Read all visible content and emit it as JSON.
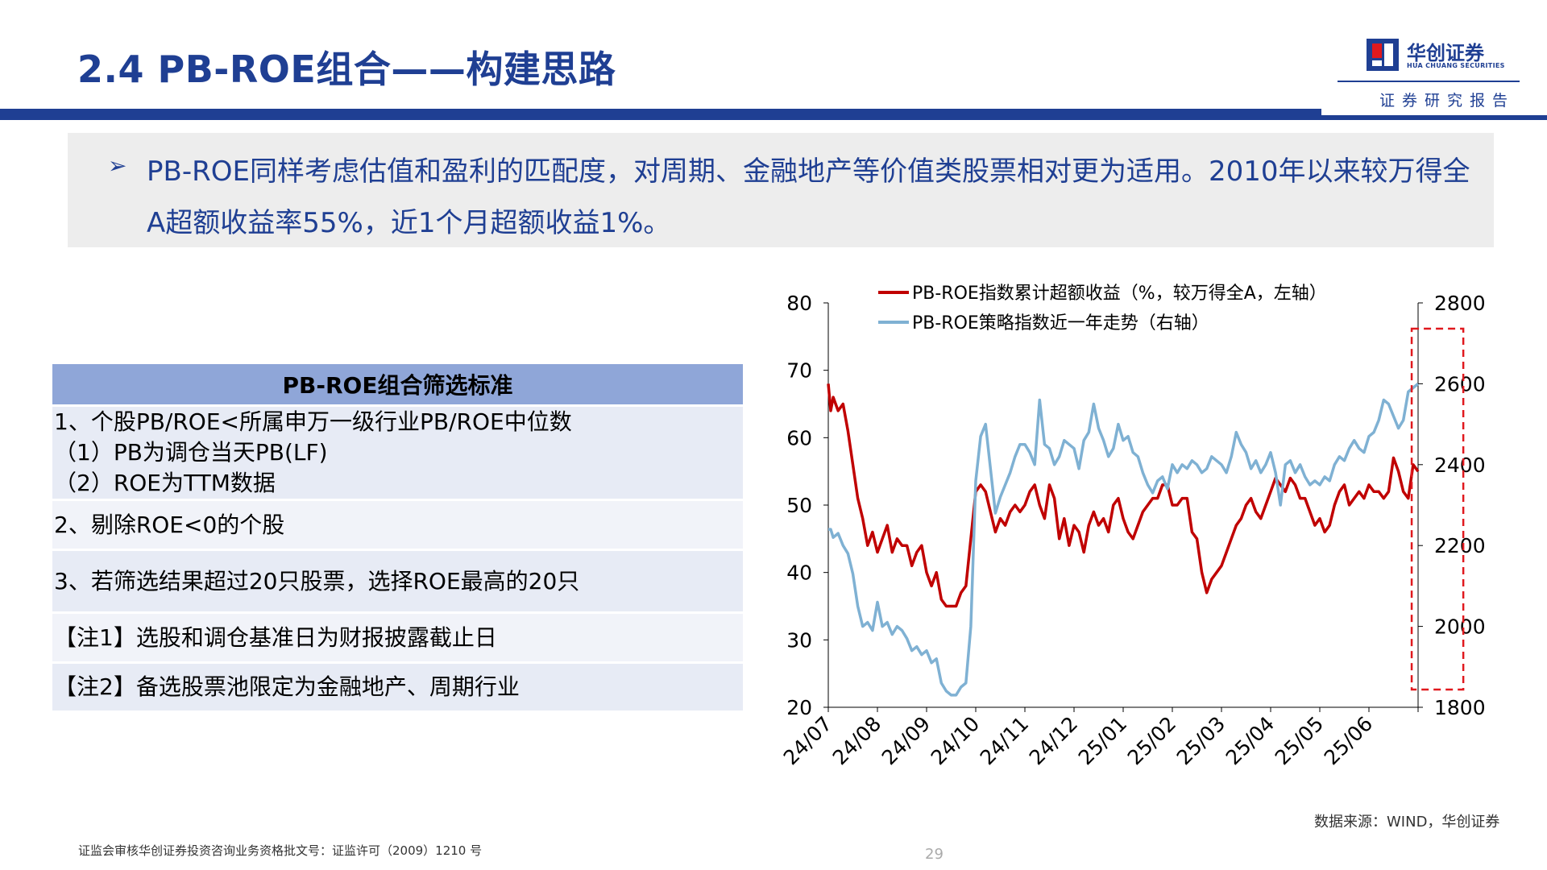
{
  "header": {
    "title": "2.4 PB-ROE组合——构建思路",
    "logo_cn": "华创证券",
    "logo_en": "HUA CHUANG SECURITIES",
    "report_label": "证券研究报告",
    "brand_color": "#1f3f93"
  },
  "summary": {
    "bullet": "➢",
    "text": "PB-ROE同样考虑估值和盈利的匹配度，对周期、金融地产等价值类股票相对更为适用。2010年以来较万得全A超额收益率55%，近1个月超额收益1%。"
  },
  "criteria_table": {
    "header": "PB-ROE组合筛选标准",
    "rows": [
      [
        "1、个股PB/ROE<所属申万一级行业PB/ROE中位数",
        "（1）PB为调仓当天PB(LF)",
        "（2）ROE为TTM数据"
      ],
      [
        "2、剔除ROE<0的个股"
      ],
      [
        "3、若筛选结果超过20只股票，选择ROE最高的20只"
      ],
      [
        "【注1】选股和调仓基准日为财报披露截止日"
      ],
      [
        "【注2】备选股票池限定为金融地产、周期行业"
      ]
    ]
  },
  "chart_data": {
    "type": "line",
    "title": "",
    "xlabel": "",
    "ylabel": "",
    "x_ticks": [
      "24/07",
      "24/08",
      "24/09",
      "24/10",
      "24/11",
      "24/12",
      "25/01",
      "25/02",
      "25/03",
      "25/04",
      "25/05",
      "25/06"
    ],
    "y_left": {
      "range": [
        20,
        80
      ],
      "ticks": [
        20,
        30,
        40,
        50,
        60,
        70,
        80
      ]
    },
    "y_right": {
      "range": [
        1800,
        2800
      ],
      "ticks": [
        1800,
        2000,
        2200,
        2400,
        2600,
        2800
      ]
    },
    "grid": false,
    "legend_position": "top",
    "x_span": [
      0,
      12
    ],
    "highlight": {
      "x_range": [
        11.87,
        12.92
      ],
      "style": "dashed-rect",
      "color": "#e0191e"
    },
    "series": [
      {
        "name": "PB-ROE指数累计超额收益（%，较万得全A，左轴）",
        "axis": "left",
        "color": "#c00000",
        "points": [
          [
            0.0,
            68
          ],
          [
            0.05,
            64
          ],
          [
            0.1,
            66
          ],
          [
            0.2,
            64
          ],
          [
            0.3,
            65
          ],
          [
            0.4,
            61
          ],
          [
            0.5,
            56
          ],
          [
            0.6,
            51
          ],
          [
            0.7,
            48
          ],
          [
            0.8,
            44
          ],
          [
            0.9,
            46
          ],
          [
            1.0,
            43
          ],
          [
            1.1,
            45
          ],
          [
            1.2,
            47
          ],
          [
            1.3,
            43
          ],
          [
            1.4,
            45
          ],
          [
            1.5,
            44
          ],
          [
            1.6,
            44
          ],
          [
            1.7,
            41
          ],
          [
            1.8,
            43
          ],
          [
            1.9,
            44
          ],
          [
            2.0,
            40
          ],
          [
            2.1,
            38
          ],
          [
            2.2,
            40
          ],
          [
            2.3,
            36
          ],
          [
            2.4,
            35
          ],
          [
            2.5,
            35
          ],
          [
            2.6,
            35
          ],
          [
            2.7,
            37
          ],
          [
            2.8,
            38
          ],
          [
            2.9,
            45
          ],
          [
            3.0,
            52
          ],
          [
            3.1,
            53
          ],
          [
            3.2,
            52
          ],
          [
            3.3,
            49
          ],
          [
            3.4,
            46
          ],
          [
            3.5,
            48
          ],
          [
            3.6,
            47
          ],
          [
            3.7,
            49
          ],
          [
            3.8,
            50
          ],
          [
            3.9,
            49
          ],
          [
            4.0,
            50
          ],
          [
            4.1,
            52
          ],
          [
            4.2,
            53
          ],
          [
            4.3,
            50
          ],
          [
            4.4,
            48
          ],
          [
            4.5,
            53
          ],
          [
            4.6,
            51
          ],
          [
            4.7,
            45
          ],
          [
            4.8,
            48
          ],
          [
            4.9,
            44
          ],
          [
            5.0,
            47
          ],
          [
            5.1,
            46
          ],
          [
            5.2,
            43
          ],
          [
            5.3,
            47
          ],
          [
            5.4,
            49
          ],
          [
            5.5,
            47
          ],
          [
            5.6,
            48
          ],
          [
            5.7,
            46
          ],
          [
            5.8,
            50
          ],
          [
            5.9,
            51
          ],
          [
            6.0,
            48
          ],
          [
            6.1,
            46
          ],
          [
            6.2,
            45
          ],
          [
            6.3,
            47
          ],
          [
            6.4,
            49
          ],
          [
            6.5,
            50
          ],
          [
            6.6,
            51
          ],
          [
            6.7,
            51
          ],
          [
            6.8,
            53
          ],
          [
            6.9,
            53
          ],
          [
            7.0,
            50
          ],
          [
            7.1,
            50
          ],
          [
            7.2,
            51
          ],
          [
            7.3,
            51
          ],
          [
            7.4,
            46
          ],
          [
            7.5,
            45
          ],
          [
            7.6,
            40
          ],
          [
            7.7,
            37
          ],
          [
            7.8,
            39
          ],
          [
            7.9,
            40
          ],
          [
            8.0,
            41
          ],
          [
            8.1,
            43
          ],
          [
            8.2,
            45
          ],
          [
            8.3,
            47
          ],
          [
            8.4,
            48
          ],
          [
            8.5,
            50
          ],
          [
            8.6,
            51
          ],
          [
            8.7,
            49
          ],
          [
            8.8,
            48
          ],
          [
            8.9,
            50
          ],
          [
            9.0,
            52
          ],
          [
            9.1,
            54
          ],
          [
            9.2,
            53
          ],
          [
            9.3,
            52
          ],
          [
            9.4,
            54
          ],
          [
            9.5,
            53
          ],
          [
            9.6,
            51
          ],
          [
            9.7,
            51
          ],
          [
            9.8,
            49
          ],
          [
            9.9,
            47
          ],
          [
            10.0,
            48
          ],
          [
            10.1,
            46
          ],
          [
            10.2,
            47
          ],
          [
            10.3,
            50
          ],
          [
            10.4,
            52
          ],
          [
            10.5,
            53
          ],
          [
            10.6,
            50
          ],
          [
            10.7,
            51
          ],
          [
            10.8,
            52
          ],
          [
            10.9,
            51
          ],
          [
            11.0,
            53
          ],
          [
            11.1,
            52
          ],
          [
            11.2,
            52
          ],
          [
            11.3,
            51
          ],
          [
            11.4,
            52
          ],
          [
            11.5,
            57
          ],
          [
            11.6,
            55
          ],
          [
            11.7,
            52
          ],
          [
            11.8,
            51
          ],
          [
            11.9,
            56
          ],
          [
            12.0,
            55
          ]
        ]
      },
      {
        "name": "PB-ROE策略指数近一年走势（右轴）",
        "axis": "right",
        "color": "#7fb1d3",
        "points": [
          [
            0.0,
            2240
          ],
          [
            0.05,
            2240
          ],
          [
            0.1,
            2220
          ],
          [
            0.2,
            2230
          ],
          [
            0.3,
            2200
          ],
          [
            0.4,
            2180
          ],
          [
            0.5,
            2130
          ],
          [
            0.6,
            2050
          ],
          [
            0.7,
            2000
          ],
          [
            0.8,
            2010
          ],
          [
            0.9,
            1990
          ],
          [
            1.0,
            2060
          ],
          [
            1.1,
            2000
          ],
          [
            1.2,
            2010
          ],
          [
            1.3,
            1980
          ],
          [
            1.4,
            2000
          ],
          [
            1.5,
            1990
          ],
          [
            1.6,
            1970
          ],
          [
            1.7,
            1940
          ],
          [
            1.8,
            1950
          ],
          [
            1.9,
            1930
          ],
          [
            2.0,
            1940
          ],
          [
            2.1,
            1910
          ],
          [
            2.2,
            1920
          ],
          [
            2.3,
            1860
          ],
          [
            2.4,
            1840
          ],
          [
            2.5,
            1830
          ],
          [
            2.6,
            1830
          ],
          [
            2.7,
            1850
          ],
          [
            2.8,
            1860
          ],
          [
            2.9,
            2000
          ],
          [
            3.0,
            2360
          ],
          [
            3.1,
            2470
          ],
          [
            3.2,
            2500
          ],
          [
            3.3,
            2390
          ],
          [
            3.4,
            2280
          ],
          [
            3.5,
            2320
          ],
          [
            3.6,
            2350
          ],
          [
            3.7,
            2380
          ],
          [
            3.8,
            2420
          ],
          [
            3.9,
            2450
          ],
          [
            4.0,
            2450
          ],
          [
            4.1,
            2430
          ],
          [
            4.2,
            2400
          ],
          [
            4.3,
            2560
          ],
          [
            4.4,
            2450
          ],
          [
            4.5,
            2440
          ],
          [
            4.6,
            2400
          ],
          [
            4.7,
            2420
          ],
          [
            4.8,
            2460
          ],
          [
            4.9,
            2450
          ],
          [
            5.0,
            2440
          ],
          [
            5.1,
            2390
          ],
          [
            5.2,
            2460
          ],
          [
            5.3,
            2480
          ],
          [
            5.4,
            2550
          ],
          [
            5.5,
            2490
          ],
          [
            5.6,
            2460
          ],
          [
            5.7,
            2420
          ],
          [
            5.8,
            2440
          ],
          [
            5.9,
            2500
          ],
          [
            6.0,
            2460
          ],
          [
            6.1,
            2470
          ],
          [
            6.2,
            2430
          ],
          [
            6.3,
            2420
          ],
          [
            6.4,
            2380
          ],
          [
            6.5,
            2350
          ],
          [
            6.6,
            2330
          ],
          [
            6.7,
            2360
          ],
          [
            6.8,
            2370
          ],
          [
            6.9,
            2340
          ],
          [
            7.0,
            2400
          ],
          [
            7.1,
            2380
          ],
          [
            7.2,
            2400
          ],
          [
            7.3,
            2390
          ],
          [
            7.4,
            2410
          ],
          [
            7.5,
            2400
          ],
          [
            7.6,
            2380
          ],
          [
            7.7,
            2390
          ],
          [
            7.8,
            2420
          ],
          [
            7.9,
            2410
          ],
          [
            8.0,
            2400
          ],
          [
            8.1,
            2380
          ],
          [
            8.2,
            2420
          ],
          [
            8.3,
            2480
          ],
          [
            8.4,
            2450
          ],
          [
            8.5,
            2430
          ],
          [
            8.6,
            2390
          ],
          [
            8.7,
            2410
          ],
          [
            8.8,
            2380
          ],
          [
            8.9,
            2400
          ],
          [
            9.0,
            2430
          ],
          [
            9.1,
            2380
          ],
          [
            9.2,
            2300
          ],
          [
            9.3,
            2400
          ],
          [
            9.4,
            2410
          ],
          [
            9.5,
            2380
          ],
          [
            9.6,
            2400
          ],
          [
            9.7,
            2370
          ],
          [
            9.8,
            2350
          ],
          [
            9.9,
            2360
          ],
          [
            10.0,
            2350
          ],
          [
            10.1,
            2370
          ],
          [
            10.2,
            2360
          ],
          [
            10.3,
            2400
          ],
          [
            10.4,
            2420
          ],
          [
            10.5,
            2410
          ],
          [
            10.6,
            2440
          ],
          [
            10.7,
            2460
          ],
          [
            10.8,
            2440
          ],
          [
            10.9,
            2430
          ],
          [
            11.0,
            2470
          ],
          [
            11.1,
            2480
          ],
          [
            11.2,
            2510
          ],
          [
            11.3,
            2560
          ],
          [
            11.4,
            2550
          ],
          [
            11.5,
            2520
          ],
          [
            11.6,
            2490
          ],
          [
            11.7,
            2510
          ],
          [
            11.8,
            2580
          ],
          [
            11.9,
            2590
          ],
          [
            12.0,
            2600
          ]
        ]
      }
    ]
  },
  "footer": {
    "source": "数据来源：WIND，华创证券",
    "license": "证监会审核华创证券投资咨询业务资格批文号：证监许可（2009）1210 号",
    "page_number": "29"
  }
}
